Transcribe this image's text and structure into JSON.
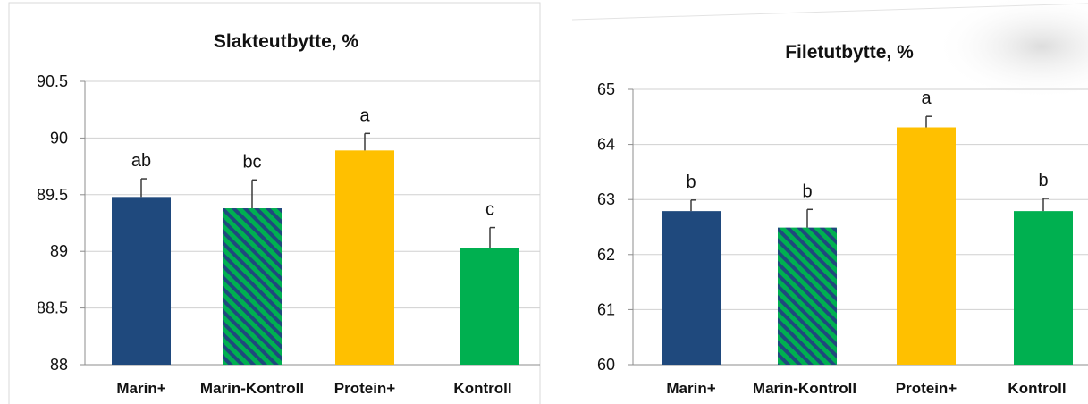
{
  "colors": {
    "navy": "#1f497d",
    "green": "#00b050",
    "gold": "#ffc000"
  },
  "chart_data": [
    {
      "type": "bar",
      "title": "Slakteutbytte, %",
      "categories": [
        "Marin+",
        "Marin-Kontroll",
        "Protein+",
        "Kontroll"
      ],
      "values": [
        89.48,
        89.38,
        89.89,
        89.03
      ],
      "errors": [
        0.16,
        0.25,
        0.15,
        0.18
      ],
      "significance_labels": [
        "ab",
        "bc",
        "a",
        "c"
      ],
      "fills": [
        "navy",
        "green-navy-stripes",
        "gold",
        "green"
      ],
      "ylim": [
        88,
        90.5
      ],
      "yticks": [
        88,
        88.5,
        89,
        89.5,
        90,
        90.5
      ],
      "ytick_labels": [
        "88",
        "88.5",
        "89",
        "89.5",
        "90",
        "90.5"
      ],
      "grid": true
    },
    {
      "type": "bar",
      "title": "Filetutbytte, %",
      "categories": [
        "Marin+",
        "Marin-Kontroll",
        "Protein+",
        "Kontroll"
      ],
      "values": [
        62.79,
        62.49,
        64.31,
        62.79
      ],
      "errors": [
        0.2,
        0.33,
        0.2,
        0.23
      ],
      "significance_labels": [
        "b",
        "b",
        "a",
        "b"
      ],
      "fills": [
        "navy",
        "green-navy-stripes",
        "gold",
        "green"
      ],
      "ylim": [
        60,
        65
      ],
      "yticks": [
        60,
        61,
        62,
        63,
        64,
        65
      ],
      "ytick_labels": [
        "60",
        "61",
        "62",
        "63",
        "64",
        "65"
      ],
      "grid": true
    }
  ]
}
